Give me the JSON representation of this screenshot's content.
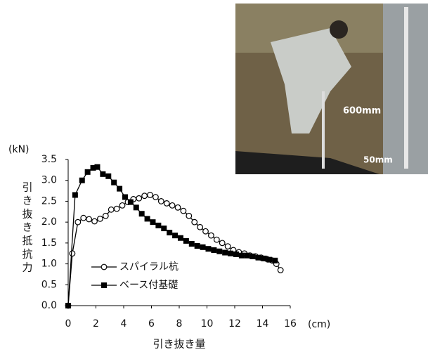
{
  "chart_data": {
    "type": "line",
    "y_unit": "(kN)",
    "x_unit": "(cm)",
    "y_label": "引き抜き抵抗力",
    "x_label": "引き抜き量",
    "xlim": [
      0,
      16
    ],
    "xticks": [
      0,
      2,
      4,
      6,
      8,
      10,
      12,
      14,
      16
    ],
    "ylim": [
      0,
      3.5
    ],
    "yticks": [
      {
        "value": 0,
        "label": "0.0"
      },
      0.5,
      {
        "value": 1,
        "label": "1.0"
      },
      1.5,
      {
        "value": 2,
        "label": "2.0"
      },
      2.5,
      {
        "value": 3,
        "label": "3.0"
      },
      3.5
    ],
    "grid": false,
    "legend": "lower left",
    "series": [
      {
        "name": "スパイラル杭",
        "color": "#000000",
        "marker": "circle",
        "x": [
          0,
          0.3,
          0.7,
          1.1,
          1.5,
          1.9,
          2.3,
          2.7,
          3.1,
          3.5,
          3.9,
          4.3,
          4.7,
          5.1,
          5.5,
          5.9,
          6.3,
          6.7,
          7.1,
          7.5,
          7.9,
          8.3,
          8.7,
          9.1,
          9.5,
          9.9,
          10.3,
          10.7,
          11.1,
          11.5,
          11.9,
          12.3,
          12.7,
          13.1,
          13.5,
          13.9,
          14.3,
          14.7,
          15.0,
          15.3
        ],
        "values": [
          0,
          1.25,
          2.0,
          2.1,
          2.07,
          2.02,
          2.08,
          2.15,
          2.3,
          2.32,
          2.4,
          2.48,
          2.55,
          2.57,
          2.63,
          2.65,
          2.6,
          2.5,
          2.45,
          2.4,
          2.35,
          2.27,
          2.15,
          2.0,
          1.88,
          1.78,
          1.68,
          1.58,
          1.5,
          1.42,
          1.33,
          1.28,
          1.25,
          1.2,
          1.18,
          1.15,
          1.12,
          1.08,
          1.0,
          0.85
        ]
      },
      {
        "name": "ベース付基礎",
        "color": "#000000",
        "marker": "square",
        "x": [
          0,
          0.5,
          1.0,
          1.4,
          1.8,
          2.1,
          2.5,
          2.9,
          3.3,
          3.7,
          4.1,
          4.5,
          4.9,
          5.3,
          5.7,
          6.1,
          6.5,
          6.9,
          7.3,
          7.7,
          8.1,
          8.5,
          8.9,
          9.3,
          9.7,
          10.1,
          10.5,
          10.9,
          11.3,
          11.7,
          12.1,
          12.5,
          12.9,
          13.3,
          13.7,
          14.1,
          14.5,
          14.9
        ],
        "values": [
          0,
          2.65,
          3.0,
          3.2,
          3.3,
          3.32,
          3.15,
          3.1,
          2.95,
          2.8,
          2.6,
          2.48,
          2.35,
          2.2,
          2.08,
          2.0,
          1.92,
          1.85,
          1.75,
          1.68,
          1.62,
          1.55,
          1.48,
          1.43,
          1.4,
          1.36,
          1.33,
          1.3,
          1.27,
          1.25,
          1.23,
          1.2,
          1.2,
          1.18,
          1.15,
          1.13,
          1.1,
          1.08
        ]
      }
    ]
  },
  "photo": {
    "labels": [
      "600mm",
      "50mm"
    ]
  }
}
